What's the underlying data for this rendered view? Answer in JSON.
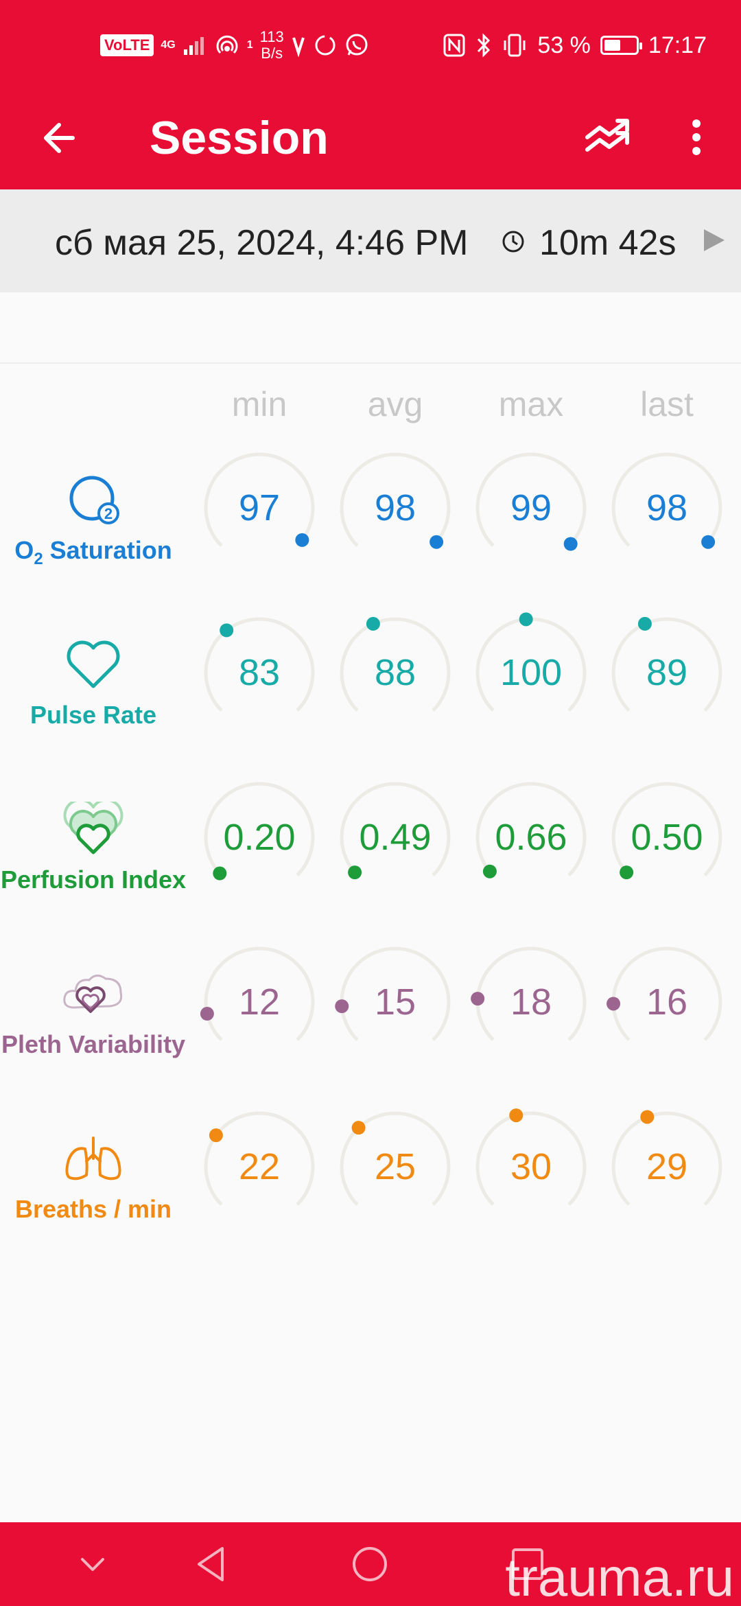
{
  "status_bar": {
    "volte": "VoLTE",
    "network": "4G",
    "hotspot_count": "1",
    "speed_value": "113",
    "speed_unit": "B/s",
    "battery_percent": "53 %",
    "battery_level": 0.53,
    "time": "17:17"
  },
  "app_bar": {
    "title": "Session",
    "back_icon": "arrow-left-icon",
    "trend_icon": "trending-icon",
    "menu_icon": "more-vertical-icon"
  },
  "session": {
    "date": "сб мая 25, 2024, 4:46 PM",
    "duration": "10m 42s"
  },
  "columns": [
    "min",
    "avg",
    "max",
    "last"
  ],
  "metrics": [
    {
      "key": "spo2",
      "label_main": "O",
      "label_sub": "2",
      "label_rest": " Saturation",
      "icon": "o2-icon",
      "color": "#1a7fd4",
      "values": [
        "97",
        "98",
        "99",
        "98"
      ],
      "levels": [
        0.97,
        0.98,
        0.99,
        0.98
      ]
    },
    {
      "key": "pulse",
      "label": "Pulse Rate",
      "icon": "heart-icon",
      "color": "#17aaa6",
      "values": [
        "83",
        "88",
        "100",
        "89"
      ],
      "levels": [
        0.36,
        0.41,
        0.48,
        0.41
      ]
    },
    {
      "key": "perfusion",
      "label": "Perfusion Index",
      "icon": "perfusion-hearts-icon",
      "color": "#1f9c3a",
      "values": [
        "0.20",
        "0.49",
        "0.66",
        "0.50"
      ],
      "levels": [
        0.01,
        0.015,
        0.02,
        0.015
      ]
    },
    {
      "key": "pvi",
      "label": "Pleth Variability",
      "icon": "pleth-variability-icon",
      "color": "#9b6590",
      "values": [
        "12",
        "15",
        "18",
        "16"
      ],
      "levels": [
        0.12,
        0.15,
        0.18,
        0.16
      ]
    },
    {
      "key": "rr",
      "label": "Breaths / min",
      "icon": "lungs-icon",
      "color": "#f08a12",
      "values": [
        "22",
        "25",
        "30",
        "29"
      ],
      "levels": [
        0.3,
        0.34,
        0.44,
        0.42
      ]
    }
  ],
  "watermark": "trauma.ru"
}
